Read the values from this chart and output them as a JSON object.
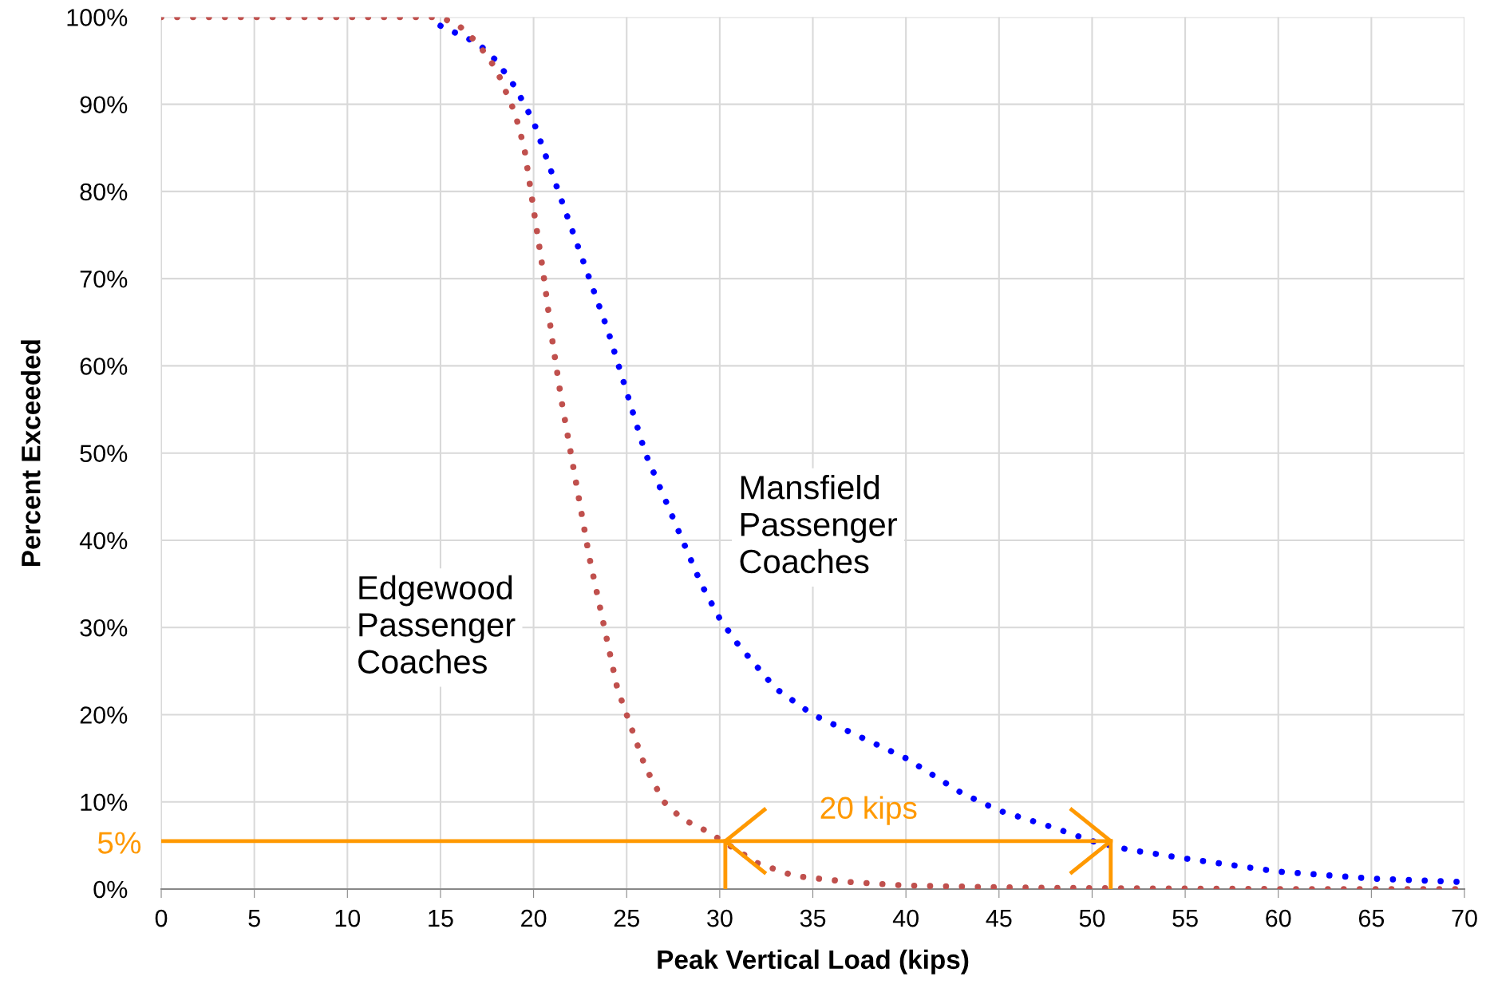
{
  "chart_data": {
    "type": "line",
    "xlabel": "Peak Vertical Load (kips)",
    "ylabel": "Percent Exceeded",
    "xlim": [
      0,
      70
    ],
    "xticks": [
      0,
      5,
      10,
      15,
      20,
      25,
      30,
      35,
      40,
      45,
      50,
      55,
      60,
      65,
      70
    ],
    "ylim": [
      0,
      100
    ],
    "yticks": [
      {
        "value": 0,
        "label": "0%"
      },
      {
        "value": 10,
        "label": "10%"
      },
      {
        "value": 20,
        "label": "20%"
      },
      {
        "value": 30,
        "label": "30%"
      },
      {
        "value": 40,
        "label": "40%"
      },
      {
        "value": 50,
        "label": "50%"
      },
      {
        "value": 60,
        "label": "60%"
      },
      {
        "value": 70,
        "label": "70%"
      },
      {
        "value": 80,
        "label": "80%"
      },
      {
        "value": 90,
        "label": "90%"
      },
      {
        "value": 100,
        "label": "100%"
      }
    ],
    "grid": true,
    "line_style": "dotted",
    "marker": "none",
    "series": [
      {
        "color": "#0000ff",
        "x": [
          15,
          16,
          17,
          18,
          19,
          20,
          21,
          22,
          23,
          24,
          25,
          26,
          27,
          28,
          29,
          30,
          31,
          33,
          35,
          37,
          40,
          43,
          45,
          48,
          50,
          52,
          55,
          60,
          65,
          70
        ],
        "values": [
          99,
          98,
          97,
          95,
          92,
          88,
          82,
          76,
          70,
          64,
          57,
          50,
          45,
          40,
          35,
          31,
          28,
          23,
          20,
          18,
          15,
          11,
          9,
          7,
          5.5,
          4.5,
          3.5,
          2,
          1.2,
          0.8
        ]
      },
      {
        "color": "#c0504d",
        "x": [
          0,
          5,
          10,
          15,
          16,
          17,
          18,
          19,
          19.5,
          20,
          20.5,
          21,
          21.5,
          22,
          22.5,
          23,
          23.5,
          24,
          24.5,
          25,
          26,
          27,
          28,
          29,
          30,
          32,
          34,
          37,
          40,
          45,
          50,
          60,
          70
        ],
        "values": [
          100,
          100,
          100,
          100,
          99,
          97,
          94,
          89,
          85,
          78,
          71,
          63,
          56,
          50,
          44,
          38,
          33,
          28,
          23,
          20,
          14,
          10,
          8,
          7,
          5.7,
          3,
          1.5,
          0.8,
          0.4,
          0.2,
          0.1,
          0,
          0
        ]
      },
      {
        "color": "#ff9900",
        "line_style": "solid",
        "x": [
          0,
          51
        ],
        "values": [
          5.5,
          5.5
        ]
      },
      {
        "color": "#ff9900",
        "line_style": "solid",
        "x": [
          30.3,
          30.3
        ],
        "values": [
          0,
          5.5
        ]
      },
      {
        "color": "#ff9900",
        "line_style": "solid",
        "x": [
          51,
          51
        ],
        "values": [
          0,
          5.5
        ]
      }
    ],
    "annotations": [
      "Edgewood\nPassenger\nCoaches",
      "Mansfield\nPassenger\nCoaches",
      "20 kips",
      "5%"
    ]
  }
}
